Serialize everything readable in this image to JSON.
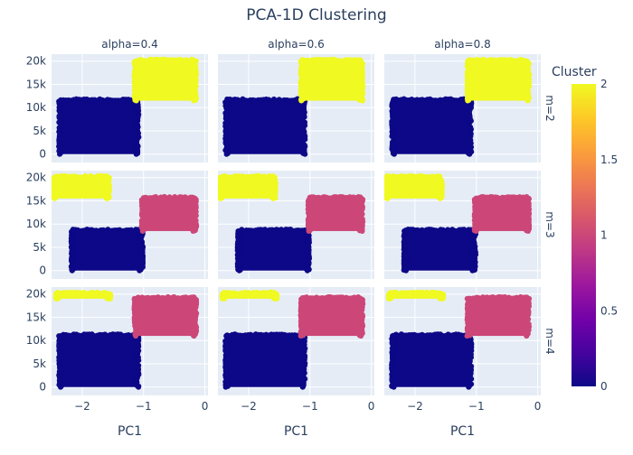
{
  "chart_data": {
    "type": "scatter",
    "title": "PCA-1D Clustering",
    "columns": [
      "alpha=0.4",
      "alpha=0.6",
      "alpha=0.8"
    ],
    "rows": [
      "m=2",
      "m=3",
      "m=4"
    ],
    "xlabel": "PC1",
    "ylabel": "",
    "xlim": [
      -2.5,
      0.05
    ],
    "ylim": [
      -1800,
      21500
    ],
    "xticks": [
      {
        "value": -2,
        "label": "−2"
      },
      {
        "value": -1,
        "label": "−1"
      },
      {
        "value": 0,
        "label": "0"
      }
    ],
    "yticks": [
      {
        "value": 0,
        "label": "0"
      },
      {
        "value": 5000,
        "label": "5k"
      },
      {
        "value": 10000,
        "label": "10k"
      },
      {
        "value": 15000,
        "label": "15k"
      },
      {
        "value": 20000,
        "label": "20k"
      }
    ],
    "colorbar": {
      "title": "Cluster",
      "min": 0,
      "max": 2,
      "ticks": [
        "0",
        "0.5",
        "1",
        "1.5",
        "2"
      ],
      "colors": [
        "#0d0887",
        "#46039f",
        "#7201a8",
        "#9c179e",
        "#bd3786",
        "#d8576b",
        "#ed7953",
        "#fb9f3a",
        "#fdca26",
        "#f0f921"
      ]
    },
    "clusters_by_row": [
      [
        {
          "cluster": 0,
          "color": "#0d0887",
          "x_range": [
            -2.35,
            -1.12
          ],
          "y_range": [
            0,
            11500
          ]
        },
        {
          "cluster": 2,
          "color": "#f0f921",
          "x_range": [
            -1.12,
            -0.18
          ],
          "y_range": [
            11500,
            20000
          ]
        }
      ],
      [
        {
          "cluster": 0,
          "color": "#0d0887",
          "x_range": [
            -2.15,
            -1.05
          ],
          "y_range": [
            0,
            8500
          ]
        },
        {
          "cluster": 1,
          "color": "#cc4778",
          "x_range": [
            -1.0,
            -0.18
          ],
          "y_range": [
            8500,
            15500
          ]
        },
        {
          "cluster": 2,
          "color": "#f0f921",
          "x_range": [
            -2.45,
            -1.6
          ],
          "y_range": [
            15500,
            20000
          ]
        }
      ],
      [
        {
          "cluster": 0,
          "color": "#0d0887",
          "x_range": [
            -2.35,
            -1.12
          ],
          "y_range": [
            0,
            11000
          ]
        },
        {
          "cluster": 1,
          "color": "#cc4778",
          "x_range": [
            -1.12,
            -0.18
          ],
          "y_range": [
            11000,
            19000
          ]
        },
        {
          "cluster": 2,
          "color": "#f0f921",
          "x_range": [
            -2.4,
            -1.58
          ],
          "y_range": [
            19000,
            20000
          ]
        }
      ]
    ]
  }
}
